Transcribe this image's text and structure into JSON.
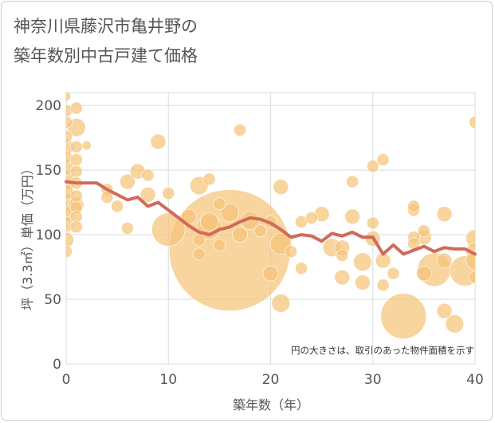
{
  "chart_data": {
    "type": "scatter",
    "title_lines": [
      "神奈川県藤沢市亀井野の",
      "築年数別中古戸建て価格"
    ],
    "xlabel": "築年数（年）",
    "ylabel": "坪（3.3㎡）単価（万円）",
    "xlim": [
      0,
      40
    ],
    "ylim": [
      0,
      210
    ],
    "xticks": [
      0,
      10,
      20,
      30,
      40
    ],
    "yticks": [
      0,
      50,
      100,
      150,
      200
    ],
    "annotation": "円の大きさは、取引のあった物件面積を示す",
    "colors": {
      "bubble": "#f5c378",
      "line": "#d16a5a",
      "grid": "#d6dde3"
    },
    "bubbles": [
      {
        "x": 0,
        "y": 207,
        "s": 3
      },
      {
        "x": 0,
        "y": 196,
        "s": 4
      },
      {
        "x": 0,
        "y": 187,
        "s": 4
      },
      {
        "x": 0,
        "y": 176,
        "s": 4
      },
      {
        "x": 0,
        "y": 168,
        "s": 5
      },
      {
        "x": 0,
        "y": 160,
        "s": 4
      },
      {
        "x": 0,
        "y": 152,
        "s": 5
      },
      {
        "x": 0,
        "y": 142,
        "s": 6
      },
      {
        "x": 0,
        "y": 133,
        "s": 5
      },
      {
        "x": 0,
        "y": 125,
        "s": 6
      },
      {
        "x": 0,
        "y": 116,
        "s": 5
      },
      {
        "x": 0,
        "y": 108,
        "s": 5
      },
      {
        "x": 0,
        "y": 96,
        "s": 5
      },
      {
        "x": 0,
        "y": 87,
        "s": 4
      },
      {
        "x": 1,
        "y": 198,
        "s": 4
      },
      {
        "x": 1,
        "y": 183,
        "s": 6
      },
      {
        "x": 1,
        "y": 168,
        "s": 4
      },
      {
        "x": 1,
        "y": 158,
        "s": 4
      },
      {
        "x": 1,
        "y": 149,
        "s": 4
      },
      {
        "x": 1,
        "y": 140,
        "s": 4
      },
      {
        "x": 1,
        "y": 130,
        "s": 4
      },
      {
        "x": 1,
        "y": 121,
        "s": 4
      },
      {
        "x": 1,
        "y": 114,
        "s": 4
      },
      {
        "x": 1,
        "y": 106,
        "s": 4
      },
      {
        "x": 1,
        "y": 123,
        "s": 5
      },
      {
        "x": 2,
        "y": 169,
        "s": 3
      },
      {
        "x": 4,
        "y": 135,
        "s": 4
      },
      {
        "x": 4,
        "y": 129,
        "s": 4
      },
      {
        "x": 5,
        "y": 122,
        "s": 4
      },
      {
        "x": 6,
        "y": 105,
        "s": 4
      },
      {
        "x": 6,
        "y": 141,
        "s": 5
      },
      {
        "x": 7,
        "y": 149,
        "s": 5
      },
      {
        "x": 8,
        "y": 146,
        "s": 4
      },
      {
        "x": 8,
        "y": 131,
        "s": 5
      },
      {
        "x": 9,
        "y": 172,
        "s": 5
      },
      {
        "x": 10,
        "y": 132,
        "s": 4
      },
      {
        "x": 10,
        "y": 104,
        "s": 11
      },
      {
        "x": 12,
        "y": 114,
        "s": 5
      },
      {
        "x": 13,
        "y": 138,
        "s": 6
      },
      {
        "x": 13,
        "y": 96,
        "s": 4
      },
      {
        "x": 13,
        "y": 85,
        "s": 4
      },
      {
        "x": 14,
        "y": 143,
        "s": 4
      },
      {
        "x": 14,
        "y": 110,
        "s": 6
      },
      {
        "x": 14,
        "y": 106,
        "s": 8
      },
      {
        "x": 15,
        "y": 124,
        "s": 4
      },
      {
        "x": 15,
        "y": 92,
        "s": 4
      },
      {
        "x": 16,
        "y": 88,
        "s": 40
      },
      {
        "x": 16,
        "y": 117,
        "s": 6
      },
      {
        "x": 17,
        "y": 181,
        "s": 4
      },
      {
        "x": 17,
        "y": 100,
        "s": 5
      },
      {
        "x": 18,
        "y": 111,
        "s": 6
      },
      {
        "x": 19,
        "y": 103,
        "s": 4
      },
      {
        "x": 20,
        "y": 110,
        "s": 4
      },
      {
        "x": 20,
        "y": 70,
        "s": 5
      },
      {
        "x": 21,
        "y": 137,
        "s": 5
      },
      {
        "x": 21,
        "y": 93,
        "s": 7
      },
      {
        "x": 21,
        "y": 47,
        "s": 6
      },
      {
        "x": 22,
        "y": 87,
        "s": 4
      },
      {
        "x": 23,
        "y": 110,
        "s": 4
      },
      {
        "x": 23,
        "y": 74,
        "s": 4
      },
      {
        "x": 24,
        "y": 113,
        "s": 4
      },
      {
        "x": 25,
        "y": 116,
        "s": 5
      },
      {
        "x": 26,
        "y": 90,
        "s": 6
      },
      {
        "x": 27,
        "y": 90,
        "s": 5
      },
      {
        "x": 27,
        "y": 84,
        "s": 4
      },
      {
        "x": 27,
        "y": 67,
        "s": 5
      },
      {
        "x": 28,
        "y": 141,
        "s": 4
      },
      {
        "x": 28,
        "y": 114,
        "s": 5
      },
      {
        "x": 29,
        "y": 79,
        "s": 6
      },
      {
        "x": 29,
        "y": 63,
        "s": 5
      },
      {
        "x": 30,
        "y": 153,
        "s": 4
      },
      {
        "x": 30,
        "y": 109,
        "s": 4
      },
      {
        "x": 30,
        "y": 97,
        "s": 5
      },
      {
        "x": 31,
        "y": 158,
        "s": 4
      },
      {
        "x": 31,
        "y": 80,
        "s": 5
      },
      {
        "x": 31,
        "y": 61,
        "s": 4
      },
      {
        "x": 32,
        "y": 70,
        "s": 4
      },
      {
        "x": 33,
        "y": 37,
        "s": 15
      },
      {
        "x": 34,
        "y": 119,
        "s": 4
      },
      {
        "x": 34,
        "y": 122,
        "s": 4
      },
      {
        "x": 34,
        "y": 98,
        "s": 4
      },
      {
        "x": 34,
        "y": 93,
        "s": 4
      },
      {
        "x": 35,
        "y": 103,
        "s": 4
      },
      {
        "x": 35,
        "y": 98,
        "s": 5
      },
      {
        "x": 35,
        "y": 70,
        "s": 5
      },
      {
        "x": 36,
        "y": 73,
        "s": 11
      },
      {
        "x": 37,
        "y": 116,
        "s": 5
      },
      {
        "x": 37,
        "y": 80,
        "s": 5
      },
      {
        "x": 37,
        "y": 41,
        "s": 5
      },
      {
        "x": 38,
        "y": 31,
        "s": 6
      },
      {
        "x": 39,
        "y": 72,
        "s": 10
      },
      {
        "x": 40,
        "y": 187,
        "s": 4
      },
      {
        "x": 40,
        "y": 97,
        "s": 6
      },
      {
        "x": 40,
        "y": 87,
        "s": 6
      },
      {
        "x": 40,
        "y": 80,
        "s": 6
      },
      {
        "x": 40,
        "y": 67,
        "s": 4
      }
    ],
    "line": {
      "x": [
        0,
        1,
        2,
        3,
        4,
        5,
        6,
        7,
        8,
        9,
        10,
        11,
        12,
        13,
        14,
        15,
        16,
        17,
        18,
        19,
        20,
        21,
        22,
        23,
        24,
        25,
        26,
        27,
        28,
        29,
        30,
        31,
        32,
        33,
        34,
        35,
        36,
        37,
        38,
        39,
        40
      ],
      "y": [
        141,
        140,
        140,
        140,
        135,
        131,
        127,
        129,
        122,
        125,
        119,
        113,
        107,
        102,
        100,
        104,
        106,
        110,
        113,
        112,
        109,
        104,
        98,
        100,
        99,
        95,
        101,
        99,
        102,
        98,
        98,
        85,
        92,
        85,
        88,
        91,
        87,
        90,
        89,
        89,
        85
      ]
    }
  }
}
